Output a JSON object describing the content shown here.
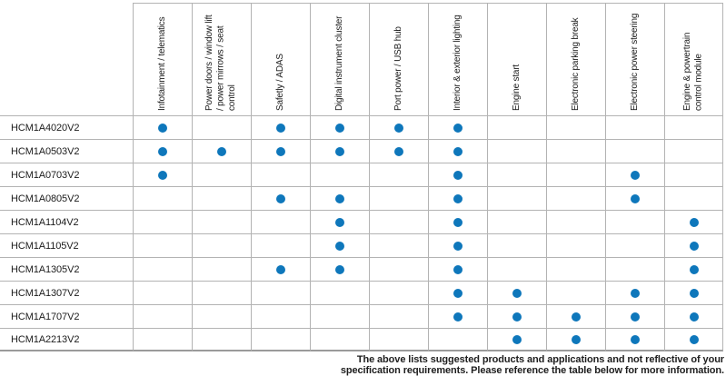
{
  "table": {
    "dot_color": "#0e77bb",
    "grid_color": "#b3b3b3",
    "columns": [
      "Infotainment / telematics",
      "Power doors / window lift\n/ power mirrows / seat\ncontrol",
      "Safetly / ADAS",
      "Digital instrument cluster",
      "Port power / USB hub",
      "Interior & exterior lighting",
      "Engine start",
      "Electronic parking break",
      "Electronic power steering",
      "Engine & powertrain\ncontrol module"
    ],
    "rows": [
      {
        "part": "HCM1A4020V2",
        "dots": [
          1,
          0,
          1,
          1,
          1,
          1,
          0,
          0,
          0,
          0
        ]
      },
      {
        "part": "HCM1A0503V2",
        "dots": [
          1,
          1,
          1,
          1,
          1,
          1,
          0,
          0,
          0,
          0
        ]
      },
      {
        "part": "HCM1A0703V2",
        "dots": [
          1,
          0,
          0,
          0,
          0,
          1,
          0,
          0,
          1,
          0
        ]
      },
      {
        "part": "HCM1A0805V2",
        "dots": [
          0,
          0,
          1,
          1,
          0,
          1,
          0,
          0,
          1,
          0
        ]
      },
      {
        "part": "HCM1A1104V2",
        "dots": [
          0,
          0,
          0,
          1,
          0,
          1,
          0,
          0,
          0,
          1
        ]
      },
      {
        "part": "HCM1A1105V2",
        "dots": [
          0,
          0,
          0,
          1,
          0,
          1,
          0,
          0,
          0,
          1
        ]
      },
      {
        "part": "HCM1A1305V2",
        "dots": [
          0,
          0,
          1,
          1,
          0,
          1,
          0,
          0,
          0,
          1
        ]
      },
      {
        "part": "HCM1A1307V2",
        "dots": [
          0,
          0,
          0,
          0,
          0,
          1,
          1,
          0,
          1,
          1
        ]
      },
      {
        "part": "HCM1A1707V2",
        "dots": [
          0,
          0,
          0,
          0,
          0,
          1,
          1,
          1,
          1,
          1
        ]
      },
      {
        "part": "HCM1A2213V2",
        "dots": [
          0,
          0,
          0,
          0,
          0,
          0,
          1,
          1,
          1,
          1
        ]
      }
    ]
  },
  "footer": {
    "note": "The above lists suggested products and applications and not reflective of your\nspecification requirements. Please reference the table below for more information."
  }
}
